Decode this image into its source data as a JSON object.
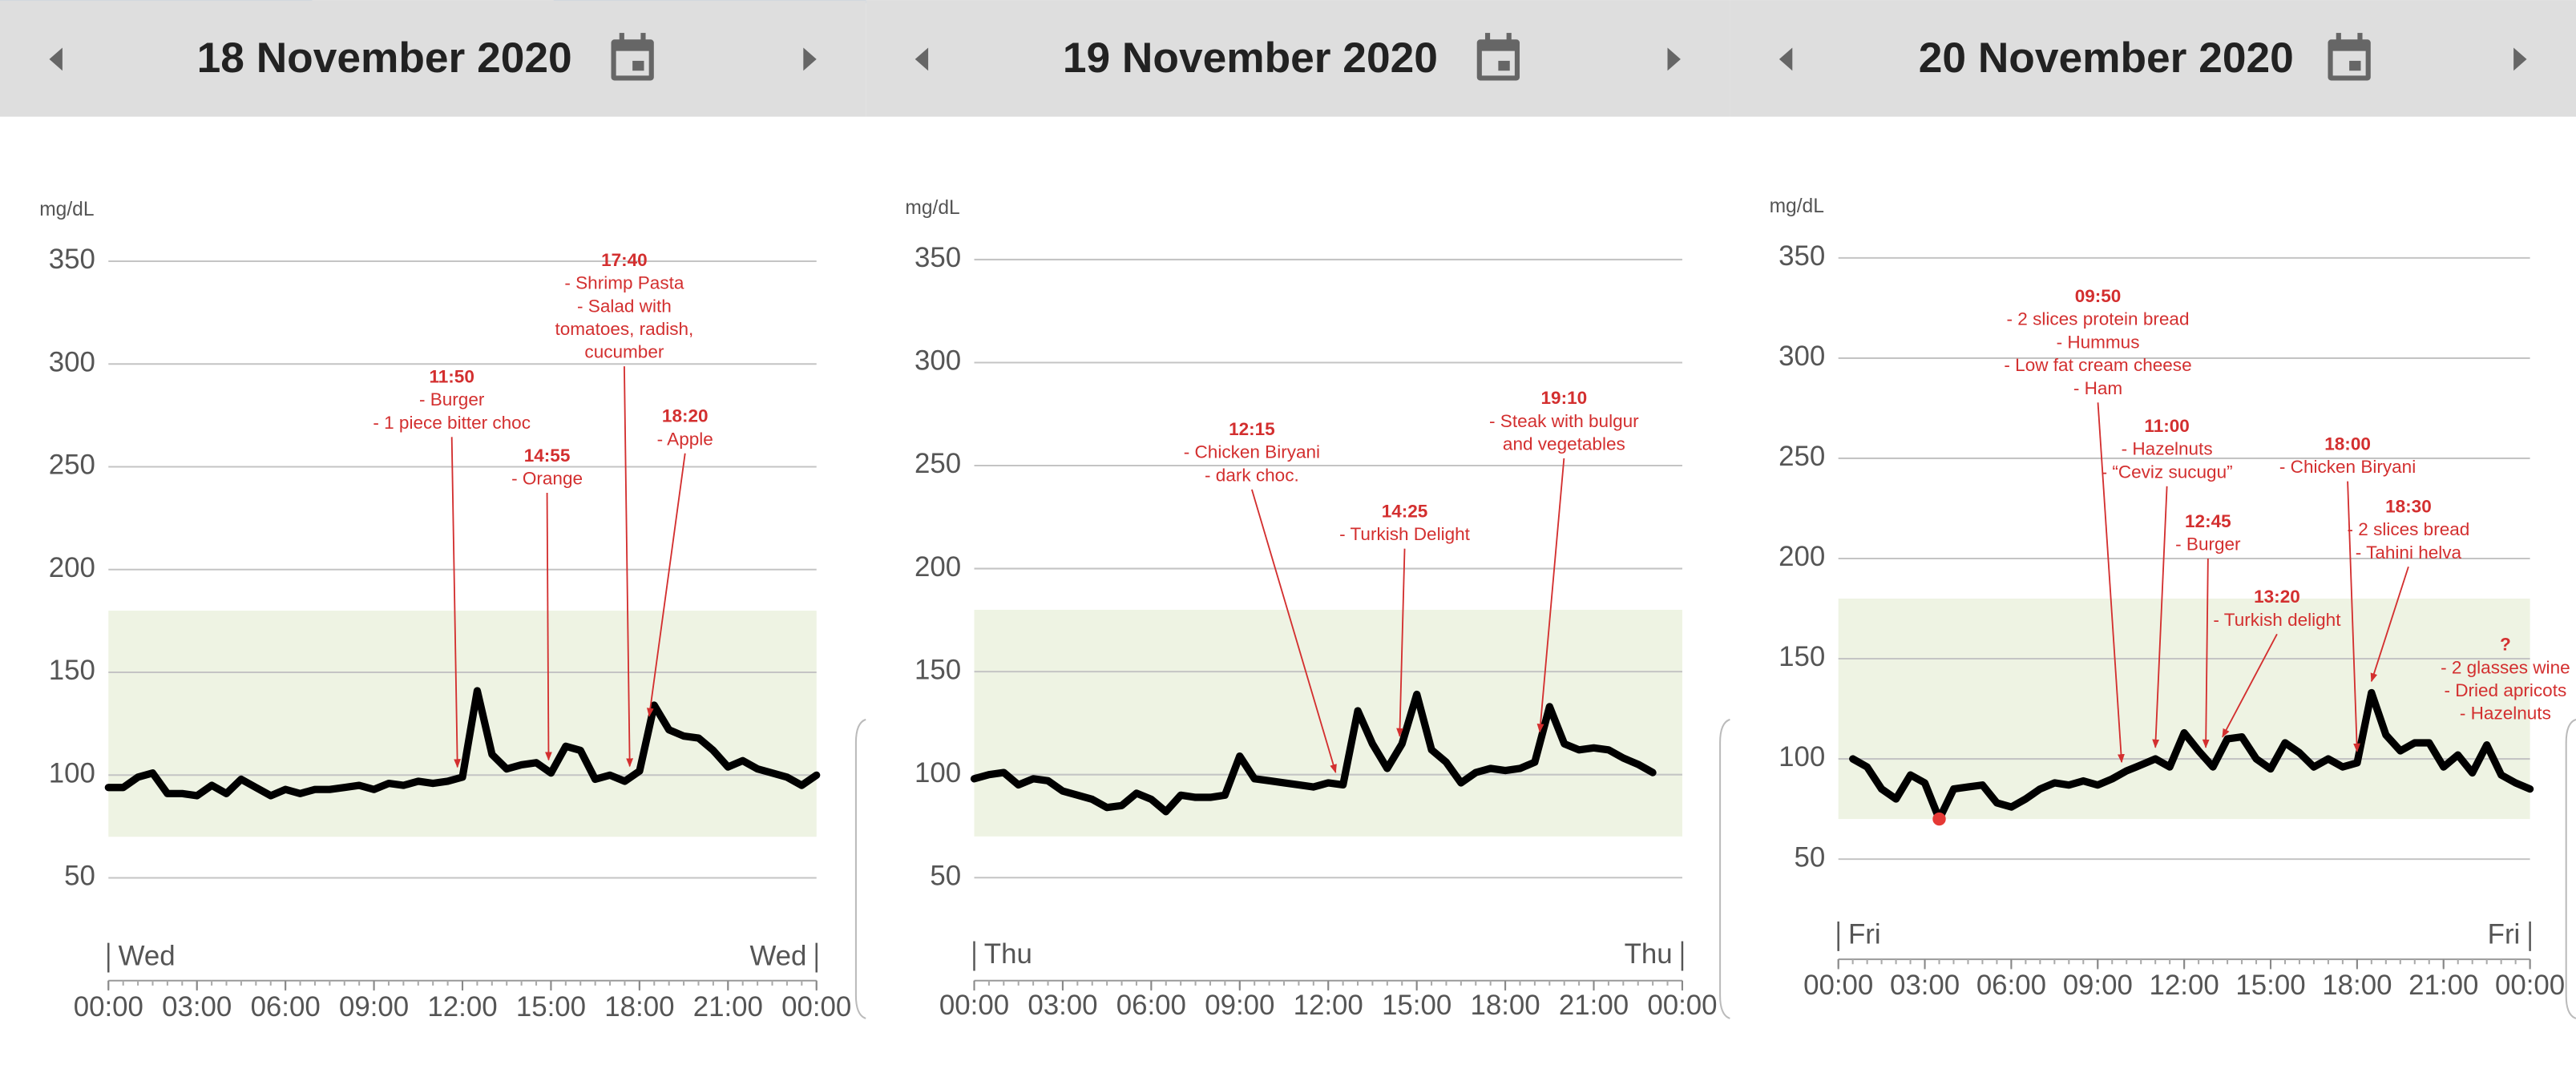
{
  "chart_data": [
    {
      "type": "line",
      "title": "18 November 2020",
      "ylabel": "mg/dL",
      "day_label": "Wed",
      "x": [
        0,
        0.5,
        1,
        1.5,
        2,
        2.5,
        3,
        3.5,
        4,
        4.5,
        5,
        5.5,
        6,
        6.5,
        7,
        7.5,
        8,
        8.5,
        9,
        9.5,
        10,
        10.5,
        11,
        11.5,
        12,
        12.5,
        13,
        13.5,
        14,
        14.5,
        15,
        15.5,
        16,
        16.5,
        17,
        17.5,
        18,
        18.5,
        19,
        19.5,
        20,
        20.5,
        21,
        21.5,
        22,
        22.5,
        23,
        23.5,
        24
      ],
      "series": [
        {
          "color": "#000000",
          "values": [
            94,
            94,
            99,
            101,
            91,
            91,
            90,
            95,
            91,
            98,
            94,
            90,
            93,
            91,
            93,
            93,
            94,
            95,
            93,
            96,
            95,
            97,
            96,
            97,
            99,
            141,
            110,
            103,
            105,
            106,
            101,
            114,
            112,
            98,
            100,
            97,
            102,
            134,
            122,
            119,
            118,
            112,
            104,
            107,
            103,
            101,
            99,
            95,
            100
          ]
        }
      ],
      "xlim": [
        0,
        24
      ],
      "xticks": [
        {
          "value": 0,
          "label": "00:00"
        },
        {
          "value": 3,
          "label": "03:00"
        },
        {
          "value": 6,
          "label": "06:00"
        },
        {
          "value": 9,
          "label": "09:00"
        },
        {
          "value": 12,
          "label": "12:00"
        },
        {
          "value": 15,
          "label": "15:00"
        },
        {
          "value": 18,
          "label": "18:00"
        },
        {
          "value": 21,
          "label": "21:00"
        },
        {
          "value": 24,
          "label": "00:00"
        }
      ],
      "ylim": [
        0,
        350
      ],
      "yticks": [
        50,
        100,
        150,
        200,
        250,
        300,
        350
      ],
      "grid": true,
      "target_range": [
        70,
        180
      ],
      "target_color": "#eef3e3",
      "annotation_color": "#d32f2f",
      "annotations": [
        {
          "time": "11:50",
          "x": 11.83,
          "lines": [
            "- Burger",
            "- 1 piece bitter choc"
          ]
        },
        {
          "time": "14:55",
          "x": 14.92,
          "lines": [
            "- Orange"
          ]
        },
        {
          "time": "17:40",
          "x": 17.67,
          "lines": [
            "- Shrimp Pasta",
            "- Salad with",
            "tomatoes, radish,",
            "cucumber"
          ]
        },
        {
          "time": "18:20",
          "x": 18.33,
          "lines": [
            "- Apple"
          ]
        }
      ]
    },
    {
      "type": "line",
      "title": "19 November 2020",
      "ylabel": "mg/dL",
      "day_label": "Thu",
      "x": [
        0,
        0.5,
        1,
        1.5,
        2,
        2.5,
        3,
        3.5,
        4,
        4.5,
        5,
        5.5,
        6,
        6.5,
        7,
        7.5,
        8,
        8.5,
        9,
        9.5,
        10,
        10.5,
        11,
        11.5,
        12,
        12.5,
        13,
        13.5,
        14,
        14.5,
        15,
        15.5,
        16,
        16.5,
        17,
        17.5,
        18,
        18.5,
        19,
        19.5,
        20,
        20.5,
        21,
        21.5,
        22,
        22.5,
        23,
        23.5,
        24
      ],
      "series": [
        {
          "color": "#000000",
          "values": [
            98,
            100,
            101,
            95,
            98,
            97,
            92,
            90,
            88,
            84,
            85,
            91,
            88,
            82,
            90,
            89,
            89,
            90,
            109,
            98,
            97,
            96,
            95,
            94,
            96,
            95,
            131,
            115,
            103,
            115,
            139,
            112,
            106,
            96,
            101,
            103,
            102,
            103,
            106,
            133,
            115,
            112,
            113,
            112,
            108,
            105,
            101,
            null,
            null
          ]
        }
      ],
      "xlim": [
        0,
        24
      ],
      "xticks": [
        {
          "value": 0,
          "label": "00:00"
        },
        {
          "value": 3,
          "label": "03:00"
        },
        {
          "value": 6,
          "label": "06:00"
        },
        {
          "value": 9,
          "label": "09:00"
        },
        {
          "value": 12,
          "label": "12:00"
        },
        {
          "value": 15,
          "label": "15:00"
        },
        {
          "value": 18,
          "label": "18:00"
        },
        {
          "value": 21,
          "label": "21:00"
        },
        {
          "value": 24,
          "label": "00:00"
        }
      ],
      "ylim": [
        0,
        350
      ],
      "yticks": [
        50,
        100,
        150,
        200,
        250,
        300,
        350
      ],
      "grid": true,
      "target_range": [
        70,
        180
      ],
      "target_color": "#eef3e3",
      "annotation_color": "#d32f2f",
      "annotations": [
        {
          "time": "12:15",
          "x": 12.25,
          "lines": [
            "- Chicken Biryani",
            "- dark choc."
          ]
        },
        {
          "time": "14:25",
          "x": 14.42,
          "lines": [
            "- Turkish Delight"
          ]
        },
        {
          "time": "19:10",
          "x": 19.17,
          "lines": [
            "- Steak with bulgur",
            "and vegetables"
          ]
        }
      ]
    },
    {
      "type": "line",
      "title": "20 November 2020",
      "ylabel": "mg/dL",
      "day_label": "Fri",
      "x": [
        0,
        0.5,
        1,
        1.5,
        2,
        2.5,
        3,
        3.5,
        4,
        4.5,
        5,
        5.5,
        6,
        6.5,
        7,
        7.5,
        8,
        8.5,
        9,
        9.5,
        10,
        10.5,
        11,
        11.5,
        12,
        12.5,
        13,
        13.5,
        14,
        14.5,
        15,
        15.5,
        16,
        16.5,
        17,
        17.5,
        18,
        18.5,
        19,
        19.5,
        20,
        20.5,
        21,
        21.5,
        22,
        22.5,
        23,
        23.5,
        24
      ],
      "series": [
        {
          "color": "#000000",
          "values": [
            null,
            100,
            96,
            85,
            80,
            92,
            88,
            70,
            85,
            86,
            87,
            78,
            76,
            80,
            85,
            88,
            87,
            89,
            87,
            90,
            94,
            97,
            100,
            96,
            113,
            104,
            96,
            110,
            111,
            100,
            95,
            108,
            103,
            96,
            100,
            96,
            98,
            133,
            112,
            104,
            108,
            108,
            96,
            102,
            93,
            107,
            92,
            88,
            85
          ]
        }
      ],
      "markers": [
        {
          "x": 3.5,
          "value": 70,
          "color": "#e53935"
        }
      ],
      "xlim": [
        0,
        24
      ],
      "xticks": [
        {
          "value": 0,
          "label": "00:00"
        },
        {
          "value": 3,
          "label": "03:00"
        },
        {
          "value": 6,
          "label": "06:00"
        },
        {
          "value": 9,
          "label": "09:00"
        },
        {
          "value": 12,
          "label": "12:00"
        },
        {
          "value": 15,
          "label": "15:00"
        },
        {
          "value": 18,
          "label": "18:00"
        },
        {
          "value": 21,
          "label": "21:00"
        },
        {
          "value": 24,
          "label": "00:00"
        }
      ],
      "ylim": [
        0,
        350
      ],
      "yticks": [
        50,
        100,
        150,
        200,
        250,
        300,
        350
      ],
      "grid": true,
      "target_range": [
        70,
        180
      ],
      "target_color": "#eef3e3",
      "annotation_color": "#d32f2f",
      "annotations": [
        {
          "time": "09:50",
          "x": 9.83,
          "lines": [
            "- 2 slices protein bread",
            "- Hummus",
            "- Low fat cream cheese",
            "- Ham"
          ]
        },
        {
          "time": "11:00",
          "x": 11,
          "lines": [
            "- Hazelnuts",
            "- “Ceviz sucugu”"
          ]
        },
        {
          "time": "12:45",
          "x": 12.75,
          "lines": [
            "- Burger"
          ]
        },
        {
          "time": "13:20",
          "x": 13.33,
          "lines": [
            "- Turkish delight"
          ]
        },
        {
          "time": "18:00",
          "x": 18,
          "lines": [
            "- Chicken Biryani"
          ]
        },
        {
          "time": "18:30",
          "x": 18.5,
          "lines": [
            "- 2 slices bread",
            "- Tahini helva"
          ]
        },
        {
          "time": "?",
          "x": null,
          "lines": [
            "- 2 glasses wine",
            "- Dried apricots",
            "- Hazelnuts"
          ]
        }
      ]
    }
  ]
}
